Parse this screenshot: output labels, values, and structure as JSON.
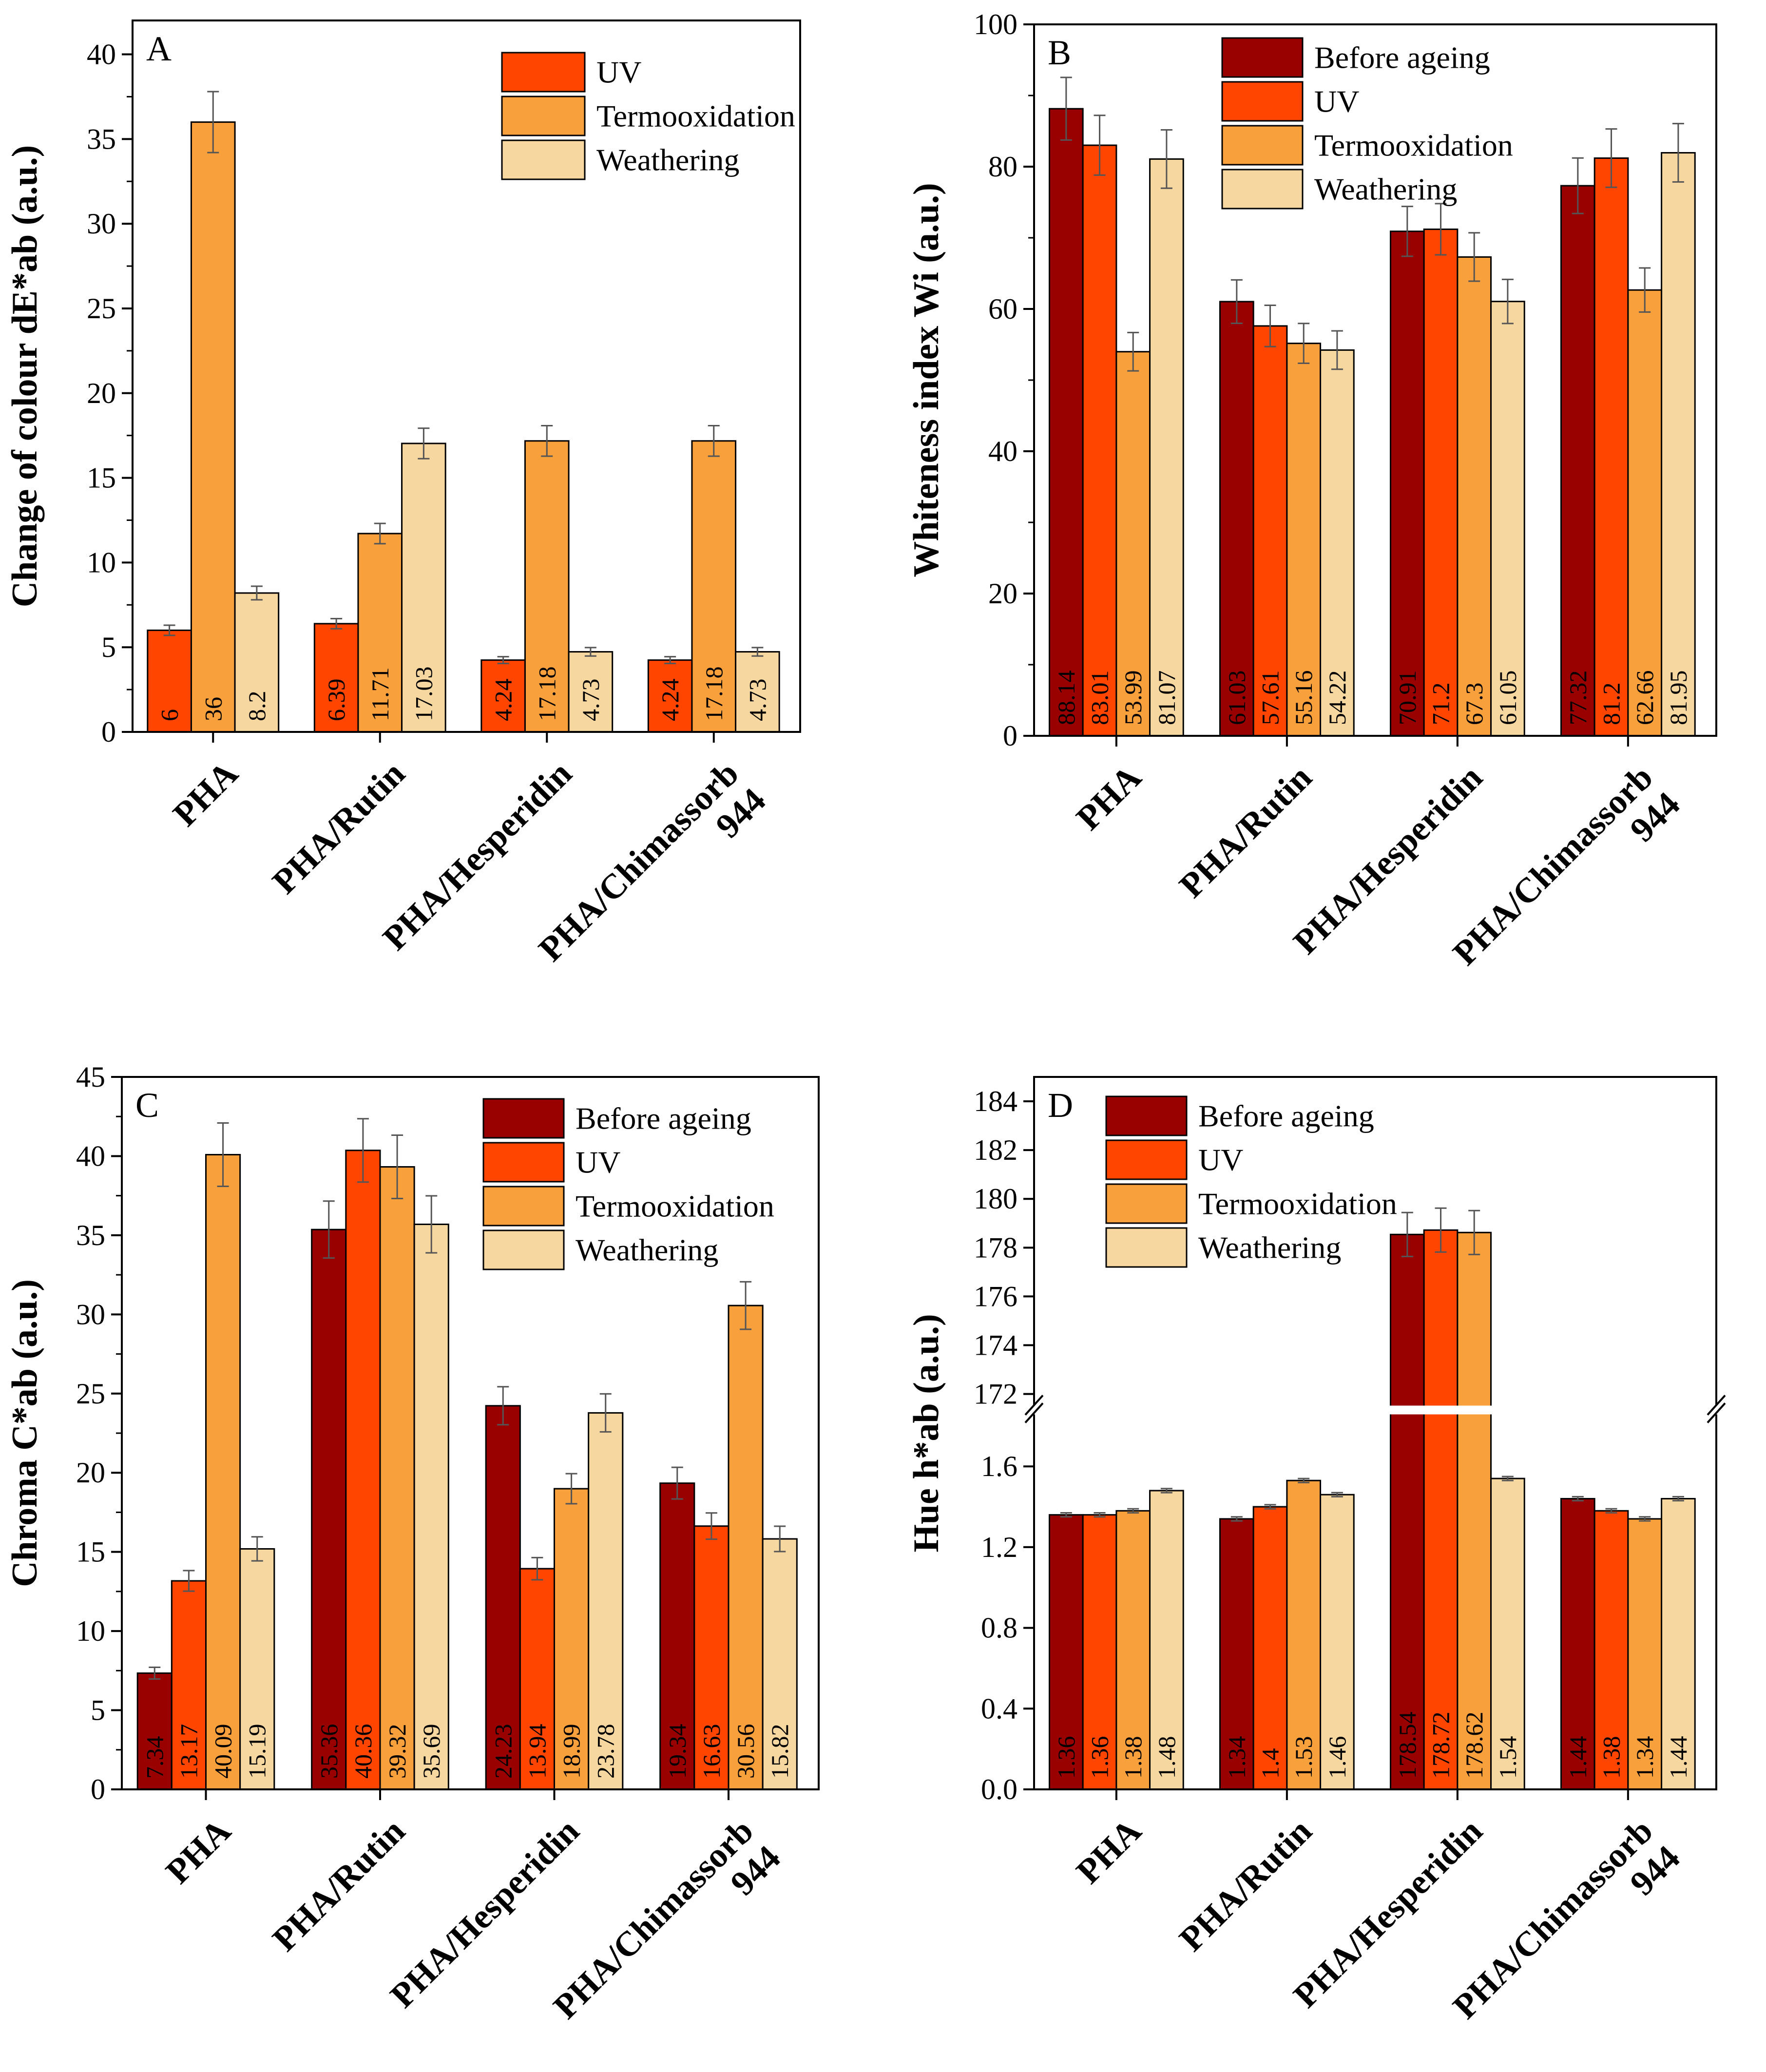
{
  "colors": {
    "before": "#990000",
    "uv": "#ff4500",
    "termo": "#f8a03c",
    "weather": "#f6d79f"
  },
  "chart_data": [
    {
      "panel": "A",
      "type": "bar",
      "ylabel": "Change of colour dE*ab (a.u.)",
      "ylim": [
        0,
        42
      ],
      "yticks": [
        0,
        5,
        10,
        15,
        20,
        25,
        30,
        35,
        40
      ],
      "categories": [
        "PHA",
        "PHA/Rutin",
        "PHA/Hesperidin",
        "PHA/Chimassorb 944"
      ],
      "series": [
        {
          "name": "UV",
          "key": "uv",
          "values": [
            6,
            6.39,
            4.24,
            4.24
          ],
          "labels": [
            "6",
            "6.39",
            "4.24",
            "4.24"
          ],
          "errors": [
            0.3,
            0.3,
            0.2,
            0.2
          ]
        },
        {
          "name": "Termooxidation",
          "key": "termo",
          "values": [
            36,
            11.71,
            17.18,
            17.18
          ],
          "labels": [
            "36",
            "11.71",
            "17.18",
            "17.18"
          ],
          "errors": [
            1.8,
            0.6,
            0.9,
            0.9
          ]
        },
        {
          "name": "Weathering",
          "key": "weather",
          "values": [
            8.2,
            17.03,
            4.73,
            4.73
          ],
          "labels": [
            "8.2",
            "17.03",
            "4.73",
            "4.73"
          ],
          "errors": [
            0.4,
            0.9,
            0.25,
            0.25
          ]
        }
      ],
      "legend_position": "top-right"
    },
    {
      "panel": "B",
      "type": "bar",
      "ylabel": "Whiteness index Wi (a.u.)",
      "ylim": [
        0,
        100
      ],
      "yticks": [
        0,
        20,
        40,
        60,
        80,
        100
      ],
      "categories": [
        "PHA",
        "PHA/Rutin",
        "PHA/Hesperidin",
        "PHA/Chimassorb 944"
      ],
      "series": [
        {
          "name": "Before ageing",
          "key": "before",
          "values": [
            88.14,
            61.03,
            70.91,
            77.32
          ],
          "labels": [
            "88.14",
            "61.03",
            "70.91",
            "77.32"
          ],
          "errors": [
            4.4,
            3.05,
            3.5,
            3.9
          ]
        },
        {
          "name": "UV",
          "key": "uv",
          "values": [
            83.01,
            57.61,
            71.2,
            81.2
          ],
          "labels": [
            "83.01",
            "57.61",
            "71.2",
            "81.2"
          ],
          "errors": [
            4.2,
            2.9,
            3.6,
            4.1
          ]
        },
        {
          "name": "Termooxidation",
          "key": "termo",
          "values": [
            53.99,
            55.16,
            67.3,
            62.66
          ],
          "labels": [
            "53.99",
            "55.16",
            "67.3",
            "62.66"
          ],
          "errors": [
            2.7,
            2.8,
            3.4,
            3.1
          ]
        },
        {
          "name": "Weathering",
          "key": "weather",
          "values": [
            81.07,
            54.22,
            61.05,
            81.95
          ],
          "labels": [
            "81.07",
            "54.22",
            "61.05",
            "81.95"
          ],
          "errors": [
            4.1,
            2.7,
            3.1,
            4.1
          ]
        }
      ],
      "legend_position": "top-center"
    },
    {
      "panel": "C",
      "type": "bar",
      "ylabel": "Chroma  C*ab (a.u.)",
      "ylim": [
        0,
        45
      ],
      "yticks": [
        0,
        5,
        10,
        15,
        20,
        25,
        30,
        35,
        40,
        45
      ],
      "categories": [
        "PHA",
        "PHA/Rutin",
        "PHA/Hesperidin",
        "PHA/Chimassorb 944"
      ],
      "series": [
        {
          "name": "Before ageing",
          "key": "before",
          "values": [
            7.34,
            35.36,
            24.23,
            19.34
          ],
          "labels": [
            "7.34",
            "35.36",
            "24.23",
            "19.34"
          ],
          "errors": [
            0.37,
            1.8,
            1.2,
            1.0
          ]
        },
        {
          "name": "UV",
          "key": "uv",
          "values": [
            13.17,
            40.36,
            13.94,
            16.63
          ],
          "labels": [
            "13.17",
            "40.36",
            "13.94",
            "16.63"
          ],
          "errors": [
            0.65,
            2.0,
            0.7,
            0.83
          ]
        },
        {
          "name": "Termooxidation",
          "key": "termo",
          "values": [
            40.09,
            39.32,
            18.99,
            30.56
          ],
          "labels": [
            "40.09",
            "39.32",
            "18.99",
            "30.56"
          ],
          "errors": [
            2.0,
            2.0,
            0.95,
            1.5
          ]
        },
        {
          "name": "Weathering",
          "key": "weather",
          "values": [
            15.19,
            35.69,
            23.78,
            15.82
          ],
          "labels": [
            "15.19",
            "35.69",
            "23.78",
            "15.82"
          ],
          "errors": [
            0.76,
            1.8,
            1.2,
            0.8
          ]
        }
      ],
      "legend_position": "top-right"
    },
    {
      "panel": "D",
      "type": "bar",
      "ylabel": "Hue h*ab (a.u.)",
      "broken_axis": true,
      "lower_ylim": [
        0,
        1.8
      ],
      "lower_yticks": [
        "0.0",
        "0.4",
        "0.8",
        "1.2",
        "1.6"
      ],
      "upper_ylim": [
        172,
        185
      ],
      "upper_yticks": [
        "172",
        "174",
        "176",
        "178",
        "180",
        "182",
        "184"
      ],
      "categories": [
        "PHA",
        "PHA/Rutin",
        "PHA/Hesperidin",
        "PHA/Chimassorb 944"
      ],
      "series": [
        {
          "name": "Before ageing",
          "key": "before",
          "values": [
            1.36,
            1.34,
            178.54,
            1.44
          ],
          "labels": [
            "1.36",
            "1.34",
            "178.54",
            "1.44"
          ],
          "errors": [
            0.01,
            0.01,
            0.9,
            0.01
          ]
        },
        {
          "name": "UV",
          "key": "uv",
          "values": [
            1.36,
            1.4,
            178.72,
            1.38
          ],
          "labels": [
            "1.36",
            "1.4",
            "178.72",
            "1.38"
          ],
          "errors": [
            0.01,
            0.01,
            0.9,
            0.01
          ]
        },
        {
          "name": "Termooxidation",
          "key": "termo",
          "values": [
            1.38,
            1.53,
            178.62,
            1.34
          ],
          "labels": [
            "1.38",
            "1.53",
            "178.62",
            "1.34"
          ],
          "errors": [
            0.01,
            0.01,
            0.9,
            0.01
          ]
        },
        {
          "name": "Weathering",
          "key": "weather",
          "values": [
            1.48,
            1.46,
            1.54,
            1.44
          ],
          "labels": [
            "1.48",
            "1.46",
            "1.54",
            "1.44"
          ],
          "errors": [
            0.01,
            0.01,
            0.01,
            0.01
          ]
        }
      ],
      "legend_position": "top-left"
    }
  ]
}
